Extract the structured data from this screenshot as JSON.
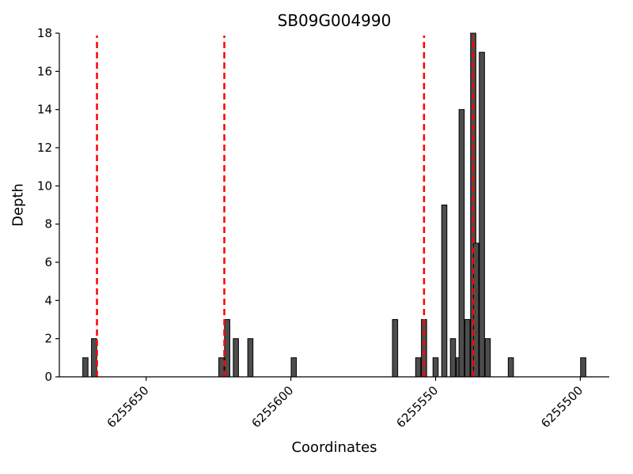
{
  "chart_data": {
    "type": "bar",
    "title": "SB09G004990",
    "xlabel": "Coordinates",
    "ylabel": "Depth",
    "xlim": [
      6255680,
      6255490
    ],
    "ylim": [
      0,
      18
    ],
    "x_axis_reversed": true,
    "xticks": [
      6255650,
      6255600,
      6255550,
      6255500
    ],
    "yticks": [
      0,
      2,
      4,
      6,
      8,
      10,
      12,
      14,
      16,
      18
    ],
    "grid": false,
    "legend": "none",
    "bar_width": 1.8,
    "bar_fill": "#4d4d4d",
    "bar_stroke": "#000000",
    "axis_color": "#000000",
    "background": "#ffffff",
    "vline_color": "#ff0000",
    "vline_style": "dashed",
    "vlines": [
      6255667,
      6255623,
      6255554,
      6255537
    ],
    "bars": [
      {
        "x": 6255671,
        "depth": 1
      },
      {
        "x": 6255668,
        "depth": 2
      },
      {
        "x": 6255624,
        "depth": 1
      },
      {
        "x": 6255622,
        "depth": 3
      },
      {
        "x": 6255619,
        "depth": 2
      },
      {
        "x": 6255614,
        "depth": 2
      },
      {
        "x": 6255599,
        "depth": 1
      },
      {
        "x": 6255564,
        "depth": 3
      },
      {
        "x": 6255556,
        "depth": 1
      },
      {
        "x": 6255554,
        "depth": 3
      },
      {
        "x": 6255550,
        "depth": 1
      },
      {
        "x": 6255547,
        "depth": 9
      },
      {
        "x": 6255544,
        "depth": 2
      },
      {
        "x": 6255542,
        "depth": 1
      },
      {
        "x": 6255541,
        "depth": 14
      },
      {
        "x": 6255539,
        "depth": 3
      },
      {
        "x": 6255537,
        "depth": 18
      },
      {
        "x": 6255536,
        "depth": 7
      },
      {
        "x": 6255534,
        "depth": 17
      },
      {
        "x": 6255532,
        "depth": 2
      },
      {
        "x": 6255524,
        "depth": 1
      },
      {
        "x": 6255499,
        "depth": 1
      }
    ]
  }
}
